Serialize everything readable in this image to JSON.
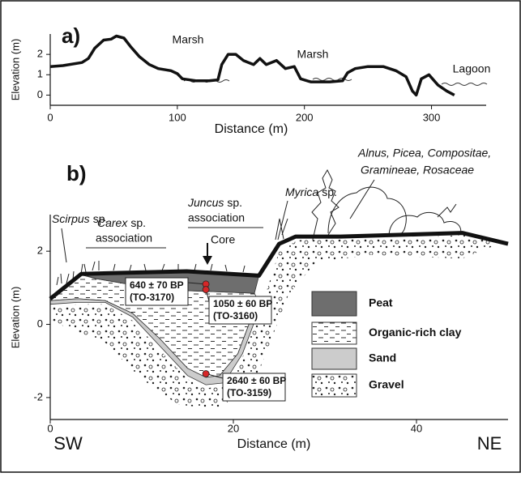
{
  "chart_data": [
    {
      "type": "line",
      "label": "a)",
      "xlabel": "Distance (m)",
      "ylabel": "Elevation (m)",
      "x": [
        0,
        10,
        25,
        30,
        35,
        42,
        48,
        52,
        58,
        63,
        70,
        78,
        85,
        95,
        100,
        104,
        115,
        125,
        132,
        135,
        140,
        146,
        152,
        160,
        165,
        170,
        178,
        185,
        192,
        197,
        205,
        220,
        230,
        234,
        240,
        250,
        262,
        272,
        280,
        285,
        288,
        292,
        298,
        305,
        312,
        318
      ],
      "values": [
        1.4,
        1.45,
        1.6,
        1.8,
        2.3,
        2.7,
        2.75,
        2.9,
        2.8,
        2.4,
        1.9,
        1.5,
        1.3,
        1.2,
        1.05,
        0.8,
        0.7,
        0.7,
        0.75,
        1.5,
        2.0,
        2.0,
        1.7,
        1.5,
        1.8,
        1.5,
        1.7,
        1.3,
        1.4,
        0.8,
        0.65,
        0.65,
        0.7,
        1.1,
        1.3,
        1.4,
        1.4,
        1.2,
        0.9,
        0.2,
        0.0,
        0.8,
        1.0,
        0.5,
        0.2,
        0.0
      ],
      "color": "#111111",
      "xlim": [
        0,
        343
      ],
      "ylim": [
        -0.5,
        3
      ],
      "xticks": [
        0,
        100,
        200,
        300
      ],
      "yticks": [
        0,
        1,
        2
      ],
      "annotations": [
        "Marsh",
        "Marsh",
        "Lagoon"
      ]
    },
    {
      "type": "section",
      "label": "b)",
      "xlabel": "Distance (m)",
      "ylabel": "Elevation (m)",
      "side_labels": [
        "SW",
        "NE"
      ],
      "xlim": [
        0,
        50
      ],
      "ylim": [
        -2.6,
        3
      ],
      "xticks": [
        0,
        20,
        40
      ],
      "yticks": [
        -2,
        0,
        2
      ],
      "surface": {
        "color": "#111111",
        "x": [
          0,
          3.4,
          14.9,
          22.8,
          25,
          26.8,
          31.7,
          38.8,
          45,
          50
        ],
        "values": [
          0.7,
          1.38,
          1.45,
          1.33,
          2.2,
          2.4,
          2.4,
          2.45,
          2.5,
          2.2
        ]
      },
      "layers": [
        {
          "name": "Peat",
          "fill": "#6e6e6e",
          "x": [
            3.4,
            14.9,
            22.8,
            22.3,
            12,
            8.5,
            5
          ],
          "y": [
            1.38,
            1.45,
            1.33,
            0.85,
            0.95,
            1.1,
            1.25
          ]
        },
        {
          "name": "Organic-rich clay",
          "fill": "dashes",
          "x": [
            0,
            3.4,
            5,
            8.5,
            12,
            22.3,
            23,
            22,
            20.5,
            18.5,
            17,
            15,
            12,
            9,
            6,
            3,
            0
          ],
          "y": [
            0.75,
            1.35,
            1.25,
            1.1,
            0.95,
            0.85,
            0.5,
            0.2,
            -0.8,
            -1.4,
            -1.45,
            -1.2,
            -0.4,
            0.3,
            0.65,
            0.7,
            0.65
          ]
        },
        {
          "name": "Sand",
          "fill": "#cccccc",
          "x": [
            0,
            3,
            6,
            9,
            12,
            15,
            17,
            19,
            21,
            22.5,
            22,
            20.5,
            18.5,
            17,
            15,
            12,
            9,
            6,
            3,
            0
          ],
          "y": [
            0.55,
            0.6,
            0.6,
            0.2,
            -0.6,
            -1.4,
            -1.65,
            -1.6,
            -0.8,
            0.2,
            0.2,
            -0.8,
            -1.4,
            -1.45,
            -1.2,
            -0.4,
            0.3,
            0.65,
            0.7,
            0.65
          ]
        },
        {
          "name": "Gravel",
          "fill": "gravel",
          "x": [
            0,
            3,
            6,
            9,
            12,
            15,
            17,
            19.5,
            21,
            22.8,
            24,
            25,
            27,
            38,
            46,
            49,
            45,
            35,
            29,
            26,
            24,
            22,
            18,
            14,
            10,
            6,
            2,
            0
          ],
          "y": [
            0.5,
            0.55,
            0.55,
            0.1,
            -0.7,
            -1.5,
            -1.75,
            -1.65,
            -0.9,
            0.3,
            1.2,
            2.0,
            2.3,
            2.35,
            2.45,
            2.2,
            1.8,
            1.9,
            1.7,
            0.8,
            -0.5,
            -1.8,
            -2.3,
            -2.2,
            -1.5,
            -0.5,
            -0.1,
            0.1
          ]
        }
      ],
      "samples": {
        "color": "#d62728",
        "x": [
          17,
          17,
          17
        ],
        "y": [
          1.1,
          0.95,
          -1.35
        ],
        "dates": [
          "640 ± 70 BP",
          "1050 ± 60 BP",
          "2640 ± 60 BP"
        ],
        "codes": [
          "(TO-3170)",
          "(TO-3160)",
          "(TO-3159)"
        ]
      },
      "core_label": "Core",
      "vegetation": {
        "scirpus": [
          "Scirpus",
          "sp."
        ],
        "carex": [
          "Carex",
          "sp."
        ],
        "carex_assoc": "association",
        "juncus": [
          "Juncus",
          "sp."
        ],
        "juncus_assoc": "association",
        "myrica": [
          "Myrica",
          "sp."
        ],
        "trees": [
          "Alnus, Picea, Compositae,",
          "Gramineae, Rosaceae"
        ]
      }
    }
  ]
}
